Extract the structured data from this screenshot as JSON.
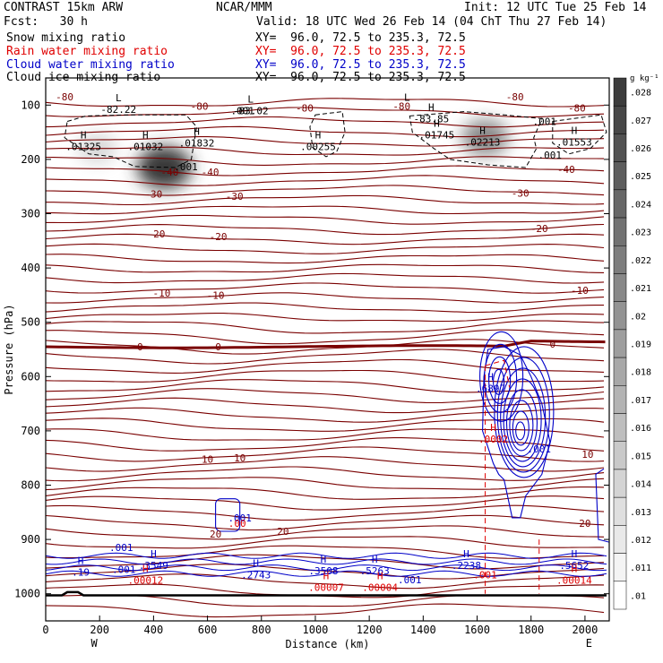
{
  "header": {
    "left1": "CONTRAST 15km ARW",
    "left2": "Fcst:   30 h",
    "center": "NCAR/MMM",
    "init": "Init: 12 UTC Tue 25 Feb 14",
    "valid": "Valid: 18 UTC Wed 26 Feb 14 (04 ChT Thu 27 Feb 14)",
    "fields": [
      {
        "name": "Snow mixing ratio",
        "xy": "XY=  96.0, 72.5 to 235.3, 72.5",
        "color": "#000000"
      },
      {
        "name": "Rain water mixing ratio",
        "xy": "XY=  96.0, 72.5 to 235.3, 72.5",
        "color": "#e00000"
      },
      {
        "name": "Cloud water mixing ratio",
        "xy": "XY=  96.0, 72.5 to 235.3, 72.5",
        "color": "#0000c8"
      },
      {
        "name": "Cloud ice mixing ratio",
        "xy": "XY=  96.0, 72.5 to 235.3, 72.5",
        "color": "#000000"
      }
    ]
  },
  "colorbar": {
    "unit": "g kg⁻¹",
    "labels": [
      ".028",
      ".027",
      ".026",
      ".025",
      ".024",
      ".023",
      ".022",
      ".021",
      ".02",
      ".019",
      ".018",
      ".017",
      ".016",
      ".015",
      ".014",
      ".013",
      ".012",
      ".011",
      ".01"
    ]
  },
  "chart_data": {
    "type": "contour cross-section",
    "xlabel": "Distance (km)",
    "ylabel": "Pressure (hPa)",
    "xlim": [
      0,
      2090
    ],
    "ylim": [
      1050,
      50
    ],
    "x_ticks": [
      0,
      200,
      400,
      600,
      800,
      1000,
      1200,
      1400,
      1600,
      1800,
      2000
    ],
    "y_ticks": [
      100,
      200,
      300,
      400,
      500,
      600,
      700,
      800,
      900,
      1000
    ],
    "x_end_labels": {
      "left": "W",
      "right": "E"
    },
    "temperature_contour_labels": [
      {
        "value": "-80",
        "x": 70,
        "p": 85
      },
      {
        "value": "-80",
        "x": 570,
        "p": 102
      },
      {
        "value": "-80",
        "x": 960,
        "p": 105
      },
      {
        "value": "-80",
        "x": 1320,
        "p": 102
      },
      {
        "value": "-80",
        "x": 1740,
        "p": 85
      },
      {
        "value": "-80",
        "x": 1970,
        "p": 105
      },
      {
        "value": "-40",
        "x": 460,
        "p": 223
      },
      {
        "value": "-40",
        "x": 610,
        "p": 223
      },
      {
        "value": "-40",
        "x": 1930,
        "p": 218
      },
      {
        "value": "-30",
        "x": 400,
        "p": 264
      },
      {
        "value": "-30",
        "x": 700,
        "p": 268
      },
      {
        "value": "-30",
        "x": 1760,
        "p": 262
      },
      {
        "value": "-20",
        "x": 410,
        "p": 337
      },
      {
        "value": "-20",
        "x": 640,
        "p": 342
      },
      {
        "value": "-20",
        "x": 1830,
        "p": 327
      },
      {
        "value": "-10",
        "x": 430,
        "p": 446
      },
      {
        "value": "-10",
        "x": 630,
        "p": 450
      },
      {
        "value": "-10",
        "x": 1980,
        "p": 441
      },
      {
        "value": "0",
        "x": 350,
        "p": 545
      },
      {
        "value": "0",
        "x": 640,
        "p": 545
      },
      {
        "value": "0",
        "x": 1880,
        "p": 540
      },
      {
        "value": "10",
        "x": 600,
        "p": 752
      },
      {
        "value": "10",
        "x": 720,
        "p": 750
      },
      {
        "value": "10",
        "x": 2010,
        "p": 743
      },
      {
        "value": "20",
        "x": 630,
        "p": 890
      },
      {
        "value": "20",
        "x": 880,
        "p": 885
      },
      {
        "value": "20",
        "x": 2000,
        "p": 870
      }
    ],
    "cloud_ice_labels": [
      {
        "label": "L",
        "value": "-82.22",
        "x": 270,
        "p": 108
      },
      {
        "label": "L",
        "value": "-83.02",
        "x": 760,
        "p": 110
      },
      {
        "label": "L",
        "value": "",
        "x": 1340,
        "p": 107
      },
      {
        "label": "H",
        "value": "-83.85",
        "x": 1430,
        "p": 125
      },
      {
        "label": "H",
        "value": ".01325",
        "x": 140,
        "p": 176
      },
      {
        "label": "H",
        "value": ".01032",
        "x": 370,
        "p": 176
      },
      {
        "label": "H",
        "value": ".01832",
        "x": 560,
        "p": 170
      },
      {
        "label": "H",
        "value": ".00255",
        "x": 1010,
        "p": 176
      },
      {
        "label": "H",
        "value": ".01745",
        "x": 1450,
        "p": 155
      },
      {
        "label": "H",
        "value": ".02213",
        "x": 1620,
        "p": 168
      },
      {
        "label": "H",
        "value": ".01553",
        "x": 1960,
        "p": 168
      },
      {
        "label": "",
        "value": ".001",
        "x": 730,
        "p": 110
      },
      {
        "label": "",
        "value": ".001",
        "x": 520,
        "p": 213
      },
      {
        "label": "",
        "value": ".001",
        "x": 1850,
        "p": 130
      },
      {
        "label": "",
        "value": ".001",
        "x": 1870,
        "p": 192
      }
    ],
    "cloud_water_labels": [
      {
        "label": "H",
        "value": ".6897",
        "x": 1650,
        "p": 622
      },
      {
        "label": "",
        "value": ".001",
        "x": 1830,
        "p": 733
      },
      {
        "label": "",
        "value": ".001",
        "x": 720,
        "p": 860
      },
      {
        "label": "",
        "value": ".001",
        "x": 280,
        "p": 915
      },
      {
        "label": "",
        "value": ".001",
        "x": 290,
        "p": 955
      },
      {
        "label": "H",
        "value": ".19",
        "x": 130,
        "p": 960
      },
      {
        "label": "H",
        "value": ".3549",
        "x": 400,
        "p": 948
      },
      {
        "label": "H",
        "value": ".2743",
        "x": 780,
        "p": 965
      },
      {
        "label": "H",
        "value": ".3508",
        "x": 1030,
        "p": 958
      },
      {
        "label": "H",
        "value": ".5263",
        "x": 1220,
        "p": 958
      },
      {
        "label": "",
        "value": ".001",
        "x": 1350,
        "p": 974
      },
      {
        "label": "H",
        "value": ".2238",
        "x": 1560,
        "p": 948
      },
      {
        "label": "H",
        "value": ".5652",
        "x": 1960,
        "p": 948
      }
    ],
    "rain_water_labels": [
      {
        "label": "H",
        "value": ".00012",
        "x": 370,
        "p": 975
      },
      {
        "label": "H",
        "value": ".00007",
        "x": 1040,
        "p": 988
      },
      {
        "label": "H",
        "value": ".00004",
        "x": 1240,
        "p": 988
      },
      {
        "label": "H",
        "value": ".00014",
        "x": 1960,
        "p": 975
      },
      {
        "label": "",
        "value": ".001",
        "x": 1630,
        "p": 965
      },
      {
        "label": "H",
        "value": ".0002",
        "x": 1660,
        "p": 715
      },
      {
        "label": "",
        "value": ".00",
        "x": 710,
        "p": 870
      }
    ],
    "snow_shading_maxima": [
      {
        "x": 190,
        "p": 180,
        "value": 0.013
      },
      {
        "x": 440,
        "p": 215,
        "value": 0.027
      },
      {
        "x": 1630,
        "p": 160,
        "value": 0.02
      }
    ],
    "colors": {
      "temperature": "#7a0000",
      "zero_isotherm": "#7a0000",
      "cloud_water": "#0000c8",
      "rain_water": "#e00000",
      "cloud_ice": "#000000",
      "terrain": "#000000"
    }
  }
}
